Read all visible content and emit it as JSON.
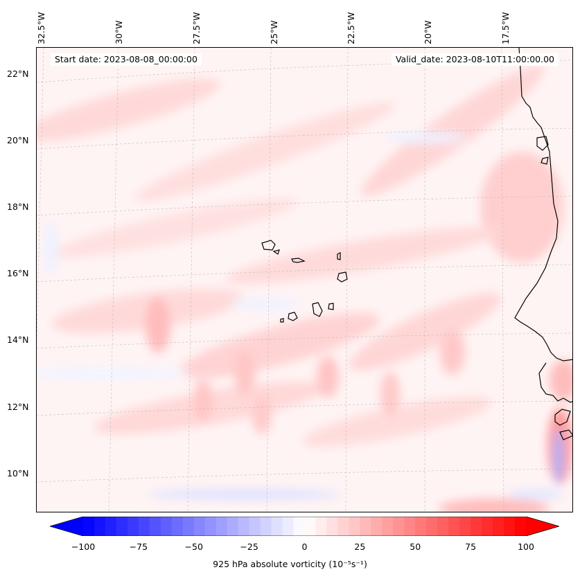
{
  "map": {
    "start_date": "Start date: 2023-08-08_00:00:00",
    "valid_date": "Valid_date: 2023-08-10T11:00:00.00",
    "lon_labels": [
      "32.5°W",
      "30°W",
      "27.5°W",
      "25°W",
      "22.5°W",
      "20°W",
      "17.5°W"
    ],
    "lat_labels": [
      "22°N",
      "20°N",
      "18°N",
      "16°N",
      "14°N",
      "12°N",
      "10°N"
    ],
    "colors": {
      "coast": "#000000",
      "gridline": "#bbbbbb",
      "background_tint": "#fff4f4"
    }
  },
  "colorbar": {
    "min": -100,
    "max": 100,
    "ticks": [
      "−100",
      "−75",
      "−50",
      "−25",
      "0",
      "25",
      "50",
      "75",
      "100"
    ],
    "label": "925 hPa absolute vorticity (10⁻⁵s⁻¹)",
    "colors": {
      "negative": "#0000ff",
      "zero": "#ffffff",
      "positive": "#ff0000"
    }
  }
}
